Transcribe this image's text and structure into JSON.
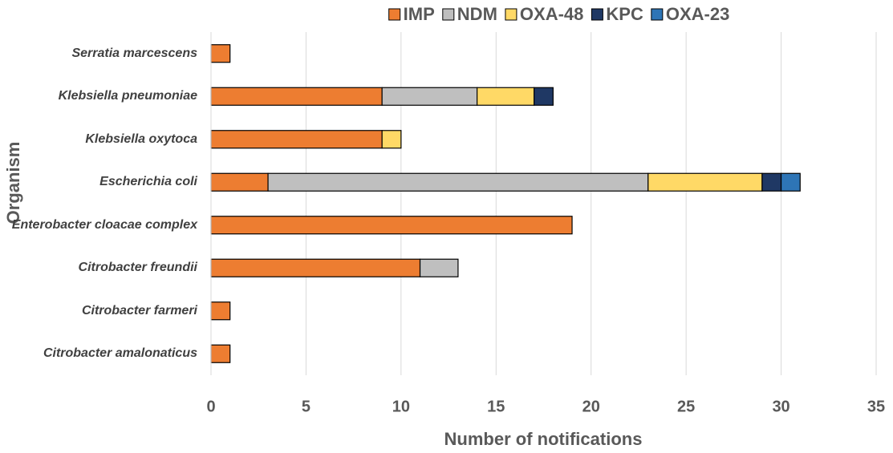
{
  "chart_data": {
    "type": "stacked-horizontal-bar",
    "x_label": "Number of notifications",
    "y_label": "Organism",
    "categories": [
      "Serratia marcescens",
      "Klebsiella pneumoniae",
      "Klebsiella oxytoca",
      "Escherichia coli",
      "Enterobacter cloacae complex",
      "Citrobacter freundii",
      "Citrobacter farmeri",
      "Citrobacter amalonaticus"
    ],
    "series": [
      {
        "name": "IMP",
        "color": "#ED7D31",
        "values": [
          1,
          9,
          9,
          3,
          19,
          11,
          1,
          1
        ]
      },
      {
        "name": "NDM",
        "color": "#BFBFBF",
        "values": [
          0,
          5,
          0,
          20,
          0,
          2,
          0,
          0
        ]
      },
      {
        "name": "OXA-48",
        "color": "#FFD966",
        "values": [
          0,
          3,
          1,
          6,
          0,
          0,
          0,
          0
        ]
      },
      {
        "name": "KPC",
        "color": "#1F3864",
        "values": [
          0,
          1,
          0,
          1,
          0,
          0,
          0,
          0
        ]
      },
      {
        "name": "OXA-23",
        "color": "#2E75B6",
        "values": [
          0,
          0,
          0,
          1,
          0,
          0,
          0,
          0
        ]
      }
    ],
    "xlim": [
      0,
      35
    ],
    "xticks": [
      0,
      5,
      10,
      15,
      20,
      25,
      30,
      35
    ],
    "grid": true,
    "legend": "top"
  }
}
